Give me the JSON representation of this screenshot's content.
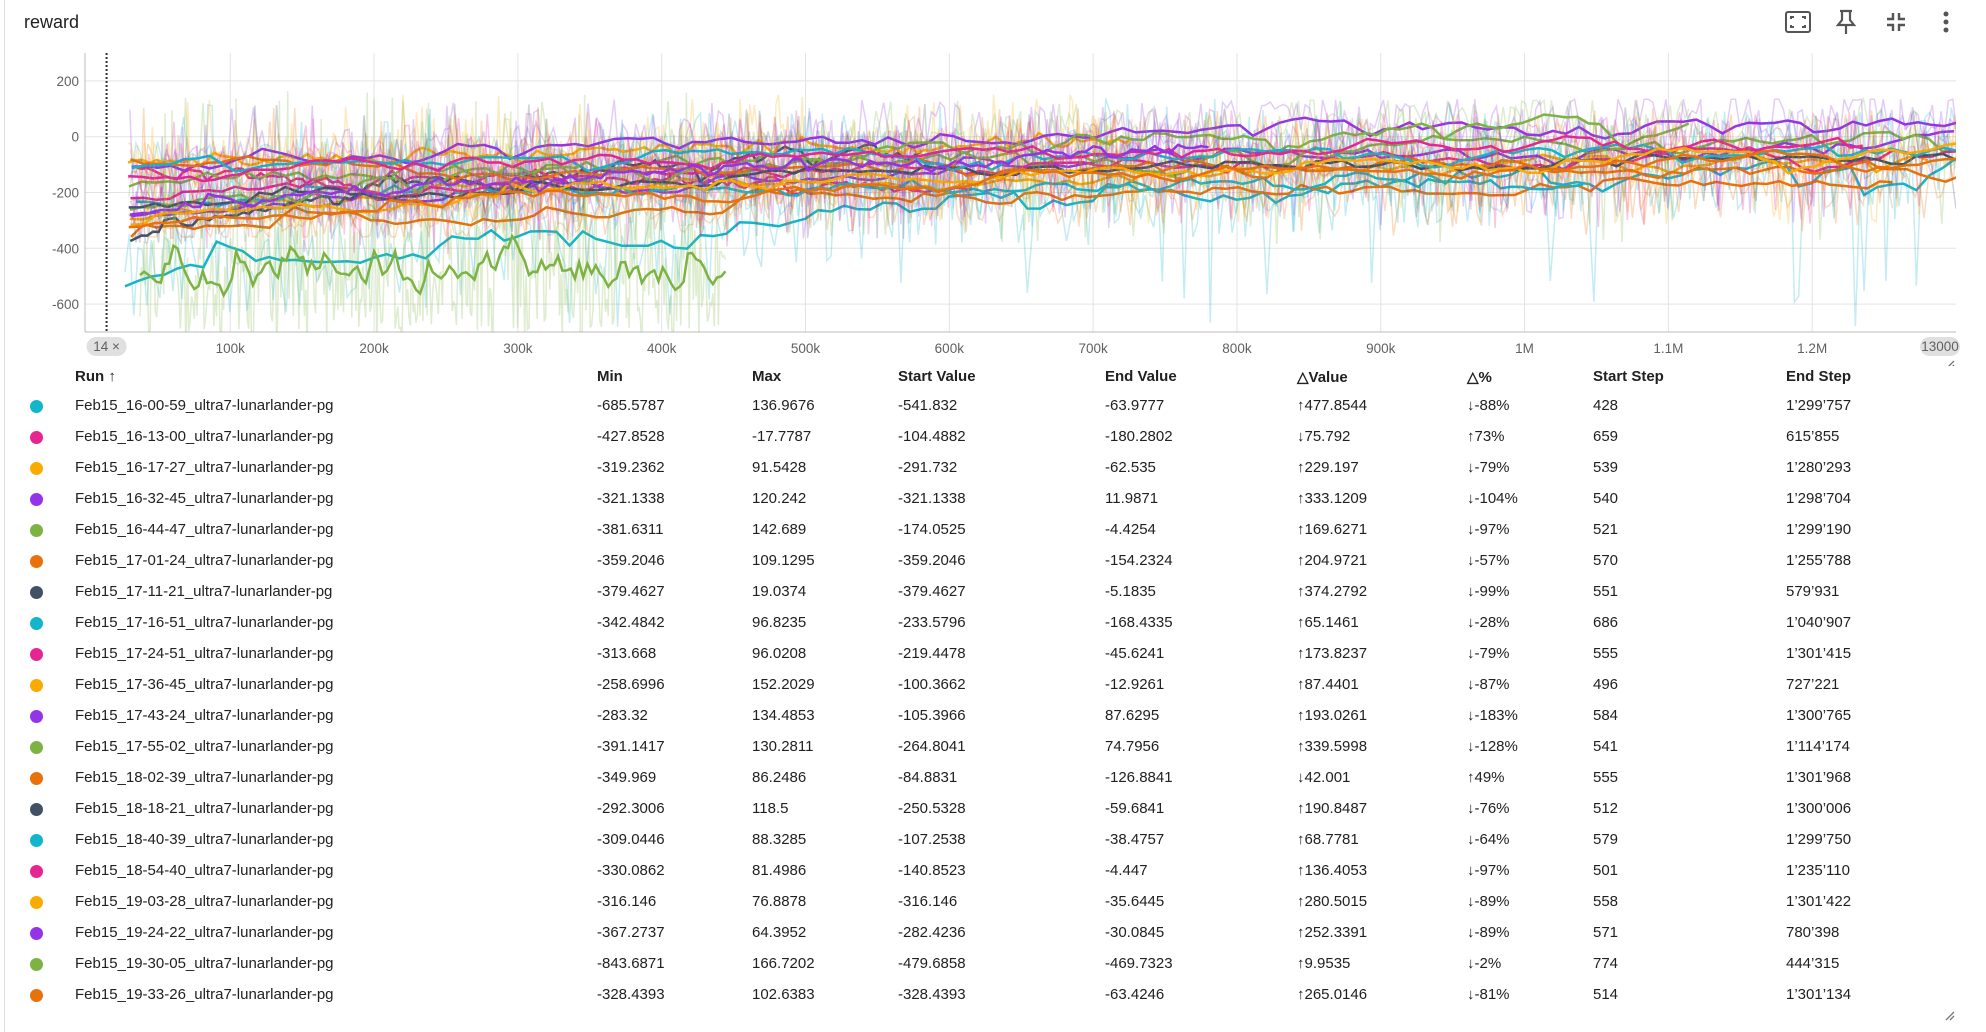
{
  "card": {
    "title": "reward",
    "toolbar": [
      {
        "name": "fit-domain-icon",
        "label": "fit-to-data"
      },
      {
        "name": "pin-icon",
        "label": "pin"
      },
      {
        "name": "collapse-icon",
        "label": "collapse"
      },
      {
        "name": "more-vert-icon",
        "label": "more"
      }
    ]
  },
  "chart_data": {
    "type": "line",
    "title": "reward",
    "xlabel": "",
    "ylabel": "",
    "xlim": [
      -1000,
      1300000
    ],
    "ylim": [
      -700,
      300
    ],
    "x_ticks": [
      "100k",
      "200k",
      "300k",
      "400k",
      "500k",
      "600k",
      "700k",
      "800k",
      "900k",
      "1M",
      "1.1M",
      "1.2M"
    ],
    "x_tick_values": [
      100000,
      200000,
      300000,
      400000,
      500000,
      600000,
      700000,
      800000,
      900000,
      1000000,
      1100000,
      1200000
    ],
    "y_ticks": [
      "200",
      "0",
      "-200",
      "-400",
      "-600"
    ],
    "y_tick_values": [
      200,
      0,
      -200,
      -400,
      -600
    ],
    "range_start_chip": "14 ×",
    "range_end_chip": "13000",
    "grid": true,
    "series": [
      {
        "name": "Feb15_16-00-59_ultra7-lunarlander-pg",
        "color": "#12b5cb",
        "min": -685.5787,
        "max": 136.9676,
        "start_value": -541.832,
        "end_value": -63.9777,
        "start_step": 428,
        "end_step": 1299757
      },
      {
        "name": "Feb15_16-13-00_ultra7-lunarlander-pg",
        "color": "#e52592",
        "min": -427.8528,
        "max": -17.7787,
        "start_value": -104.4882,
        "end_value": -180.2802,
        "start_step": 659,
        "end_step": 615855
      },
      {
        "name": "Feb15_16-17-27_ultra7-lunarlander-pg",
        "color": "#f9ab00",
        "min": -319.2362,
        "max": 91.5428,
        "start_value": -291.732,
        "end_value": -62.535,
        "start_step": 539,
        "end_step": 1280293
      },
      {
        "name": "Feb15_16-32-45_ultra7-lunarlander-pg",
        "color": "#9334e6",
        "min": -321.1338,
        "max": 120.242,
        "start_value": -321.1338,
        "end_value": 11.9871,
        "start_step": 540,
        "end_step": 1298704
      },
      {
        "name": "Feb15_16-44-47_ultra7-lunarlander-pg",
        "color": "#7cb342",
        "min": -381.6311,
        "max": 142.689,
        "start_value": -174.0525,
        "end_value": -4.4254,
        "start_step": 521,
        "end_step": 1299190
      },
      {
        "name": "Feb15_17-01-24_ultra7-lunarlander-pg",
        "color": "#e8710a",
        "min": -359.2046,
        "max": 109.1295,
        "start_value": -359.2046,
        "end_value": -154.2324,
        "start_step": 570,
        "end_step": 1255788
      },
      {
        "name": "Feb15_17-11-21_ultra7-lunarlander-pg",
        "color": "#425066",
        "min": -379.4627,
        "max": 19.0374,
        "start_value": -379.4627,
        "end_value": -5.1835,
        "start_step": 551,
        "end_step": 579931
      },
      {
        "name": "Feb15_17-16-51_ultra7-lunarlander-pg",
        "color": "#12b5cb",
        "min": -342.4842,
        "max": 96.8235,
        "start_value": -233.5796,
        "end_value": -168.4335,
        "start_step": 686,
        "end_step": 1040907
      },
      {
        "name": "Feb15_17-24-51_ultra7-lunarlander-pg",
        "color": "#e52592",
        "min": -313.668,
        "max": 96.0208,
        "start_value": -219.4478,
        "end_value": -45.6241,
        "start_step": 555,
        "end_step": 1301415
      },
      {
        "name": "Feb15_17-36-45_ultra7-lunarlander-pg",
        "color": "#f9ab00",
        "min": -258.6996,
        "max": 152.2029,
        "start_value": -100.3662,
        "end_value": -12.9261,
        "start_step": 496,
        "end_step": 727221
      },
      {
        "name": "Feb15_17-43-24_ultra7-lunarlander-pg",
        "color": "#9334e6",
        "min": -283.32,
        "max": 134.4853,
        "start_value": -105.3966,
        "end_value": 87.6295,
        "start_step": 584,
        "end_step": 1300765
      },
      {
        "name": "Feb15_17-55-02_ultra7-lunarlander-pg",
        "color": "#7cb342",
        "min": -391.1417,
        "max": 130.2811,
        "start_value": -264.8041,
        "end_value": 74.7956,
        "start_step": 541,
        "end_step": 1114174
      },
      {
        "name": "Feb15_18-02-39_ultra7-lunarlander-pg",
        "color": "#e8710a",
        "min": -349.969,
        "max": 86.2486,
        "start_value": -84.8831,
        "end_value": -126.8841,
        "start_step": 555,
        "end_step": 1301968
      },
      {
        "name": "Feb15_18-18-21_ultra7-lunarlander-pg",
        "color": "#425066",
        "min": -292.3006,
        "max": 118.5,
        "start_value": -250.5328,
        "end_value": -59.6841,
        "start_step": 512,
        "end_step": 1300006
      },
      {
        "name": "Feb15_18-40-39_ultra7-lunarlander-pg",
        "color": "#12b5cb",
        "min": -309.0446,
        "max": 88.3285,
        "start_value": -107.2538,
        "end_value": -38.4757,
        "start_step": 579,
        "end_step": 1299750
      },
      {
        "name": "Feb15_18-54-40_ultra7-lunarlander-pg",
        "color": "#e52592",
        "min": -330.0862,
        "max": 81.4986,
        "start_value": -140.8523,
        "end_value": -4.447,
        "start_step": 501,
        "end_step": 1235110
      },
      {
        "name": "Feb15_19-03-28_ultra7-lunarlander-pg",
        "color": "#f9ab00",
        "min": -316.146,
        "max": 76.8878,
        "start_value": -316.146,
        "end_value": -35.6445,
        "start_step": 558,
        "end_step": 1301422
      },
      {
        "name": "Feb15_19-24-22_ultra7-lunarlander-pg",
        "color": "#9334e6",
        "min": -367.2737,
        "max": 64.3952,
        "start_value": -282.4236,
        "end_value": -30.0845,
        "start_step": 571,
        "end_step": 780398
      },
      {
        "name": "Feb15_19-30-05_ultra7-lunarlander-pg",
        "color": "#7cb342",
        "min": -843.6871,
        "max": 166.7202,
        "start_value": -479.6858,
        "end_value": -469.7323,
        "start_step": 774,
        "end_step": 444315
      },
      {
        "name": "Feb15_19-33-26_ultra7-lunarlander-pg",
        "color": "#e8710a",
        "min": -328.4393,
        "max": 102.6383,
        "start_value": -328.4393,
        "end_value": -63.4246,
        "start_step": 514,
        "end_step": 1301134
      }
    ]
  },
  "table": {
    "headers": [
      "Run ↑",
      "Min",
      "Max",
      "Start Value",
      "End Value",
      "△Value",
      "△%",
      "Start Step",
      "End Step"
    ],
    "rows": [
      {
        "color": "#12b5cb",
        "run": "Feb15_16-00-59_ultra7-lunarlander-pg",
        "min": "-685.5787",
        "max": "136.9676",
        "start_value": "-541.832",
        "end_value": "-63.9777",
        "delta_value": "↑477.8544",
        "delta_pct": "↓-88%",
        "start_step": "428",
        "end_step": "1’299’757"
      },
      {
        "color": "#e52592",
        "run": "Feb15_16-13-00_ultra7-lunarlander-pg",
        "min": "-427.8528",
        "max": "-17.7787",
        "start_value": "-104.4882",
        "end_value": "-180.2802",
        "delta_value": "↓75.792",
        "delta_pct": "↑73%",
        "start_step": "659",
        "end_step": "615’855"
      },
      {
        "color": "#f9ab00",
        "run": "Feb15_16-17-27_ultra7-lunarlander-pg",
        "min": "-319.2362",
        "max": "91.5428",
        "start_value": "-291.732",
        "end_value": "-62.535",
        "delta_value": "↑229.197",
        "delta_pct": "↓-79%",
        "start_step": "539",
        "end_step": "1’280’293"
      },
      {
        "color": "#9334e6",
        "run": "Feb15_16-32-45_ultra7-lunarlander-pg",
        "min": "-321.1338",
        "max": "120.242",
        "start_value": "-321.1338",
        "end_value": "11.9871",
        "delta_value": "↑333.1209",
        "delta_pct": "↓-104%",
        "start_step": "540",
        "end_step": "1’298’704"
      },
      {
        "color": "#7cb342",
        "run": "Feb15_16-44-47_ultra7-lunarlander-pg",
        "min": "-381.6311",
        "max": "142.689",
        "start_value": "-174.0525",
        "end_value": "-4.4254",
        "delta_value": "↑169.6271",
        "delta_pct": "↓-97%",
        "start_step": "521",
        "end_step": "1’299’190"
      },
      {
        "color": "#e8710a",
        "run": "Feb15_17-01-24_ultra7-lunarlander-pg",
        "min": "-359.2046",
        "max": "109.1295",
        "start_value": "-359.2046",
        "end_value": "-154.2324",
        "delta_value": "↑204.9721",
        "delta_pct": "↓-57%",
        "start_step": "570",
        "end_step": "1’255’788"
      },
      {
        "color": "#425066",
        "run": "Feb15_17-11-21_ultra7-lunarlander-pg",
        "min": "-379.4627",
        "max": "19.0374",
        "start_value": "-379.4627",
        "end_value": "-5.1835",
        "delta_value": "↑374.2792",
        "delta_pct": "↓-99%",
        "start_step": "551",
        "end_step": "579’931"
      },
      {
        "color": "#12b5cb",
        "run": "Feb15_17-16-51_ultra7-lunarlander-pg",
        "min": "-342.4842",
        "max": "96.8235",
        "start_value": "-233.5796",
        "end_value": "-168.4335",
        "delta_value": "↑65.1461",
        "delta_pct": "↓-28%",
        "start_step": "686",
        "end_step": "1’040’907"
      },
      {
        "color": "#e52592",
        "run": "Feb15_17-24-51_ultra7-lunarlander-pg",
        "min": "-313.668",
        "max": "96.0208",
        "start_value": "-219.4478",
        "end_value": "-45.6241",
        "delta_value": "↑173.8237",
        "delta_pct": "↓-79%",
        "start_step": "555",
        "end_step": "1’301’415"
      },
      {
        "color": "#f9ab00",
        "run": "Feb15_17-36-45_ultra7-lunarlander-pg",
        "min": "-258.6996",
        "max": "152.2029",
        "start_value": "-100.3662",
        "end_value": "-12.9261",
        "delta_value": "↑87.4401",
        "delta_pct": "↓-87%",
        "start_step": "496",
        "end_step": "727’221"
      },
      {
        "color": "#9334e6",
        "run": "Feb15_17-43-24_ultra7-lunarlander-pg",
        "min": "-283.32",
        "max": "134.4853",
        "start_value": "-105.3966",
        "end_value": "87.6295",
        "delta_value": "↑193.0261",
        "delta_pct": "↓-183%",
        "start_step": "584",
        "end_step": "1’300’765"
      },
      {
        "color": "#7cb342",
        "run": "Feb15_17-55-02_ultra7-lunarlander-pg",
        "min": "-391.1417",
        "max": "130.2811",
        "start_value": "-264.8041",
        "end_value": "74.7956",
        "delta_value": "↑339.5998",
        "delta_pct": "↓-128%",
        "start_step": "541",
        "end_step": "1’114’174"
      },
      {
        "color": "#e8710a",
        "run": "Feb15_18-02-39_ultra7-lunarlander-pg",
        "min": "-349.969",
        "max": "86.2486",
        "start_value": "-84.8831",
        "end_value": "-126.8841",
        "delta_value": "↓42.001",
        "delta_pct": "↑49%",
        "start_step": "555",
        "end_step": "1’301’968"
      },
      {
        "color": "#425066",
        "run": "Feb15_18-18-21_ultra7-lunarlander-pg",
        "min": "-292.3006",
        "max": "118.5",
        "start_value": "-250.5328",
        "end_value": "-59.6841",
        "delta_value": "↑190.8487",
        "delta_pct": "↓-76%",
        "start_step": "512",
        "end_step": "1’300’006"
      },
      {
        "color": "#12b5cb",
        "run": "Feb15_18-40-39_ultra7-lunarlander-pg",
        "min": "-309.0446",
        "max": "88.3285",
        "start_value": "-107.2538",
        "end_value": "-38.4757",
        "delta_value": "↑68.7781",
        "delta_pct": "↓-64%",
        "start_step": "579",
        "end_step": "1’299’750"
      },
      {
        "color": "#e52592",
        "run": "Feb15_18-54-40_ultra7-lunarlander-pg",
        "min": "-330.0862",
        "max": "81.4986",
        "start_value": "-140.8523",
        "end_value": "-4.447",
        "delta_value": "↑136.4053",
        "delta_pct": "↓-97%",
        "start_step": "501",
        "end_step": "1’235’110"
      },
      {
        "color": "#f9ab00",
        "run": "Feb15_19-03-28_ultra7-lunarlander-pg",
        "min": "-316.146",
        "max": "76.8878",
        "start_value": "-316.146",
        "end_value": "-35.6445",
        "delta_value": "↑280.5015",
        "delta_pct": "↓-89%",
        "start_step": "558",
        "end_step": "1’301’422"
      },
      {
        "color": "#9334e6",
        "run": "Feb15_19-24-22_ultra7-lunarlander-pg",
        "min": "-367.2737",
        "max": "64.3952",
        "start_value": "-282.4236",
        "end_value": "-30.0845",
        "delta_value": "↑252.3391",
        "delta_pct": "↓-89%",
        "start_step": "571",
        "end_step": "780’398"
      },
      {
        "color": "#7cb342",
        "run": "Feb15_19-30-05_ultra7-lunarlander-pg",
        "min": "-843.6871",
        "max": "166.7202",
        "start_value": "-479.6858",
        "end_value": "-469.7323",
        "delta_value": "↑9.9535",
        "delta_pct": "↓-2%",
        "start_step": "774",
        "end_step": "444’315"
      },
      {
        "color": "#e8710a",
        "run": "Feb15_19-33-26_ultra7-lunarlander-pg",
        "min": "-328.4393",
        "max": "102.6383",
        "start_value": "-328.4393",
        "end_value": "-63.4246",
        "delta_value": "↑265.0146",
        "delta_pct": "↓-81%",
        "start_step": "514",
        "end_step": "1’301’134"
      }
    ]
  }
}
